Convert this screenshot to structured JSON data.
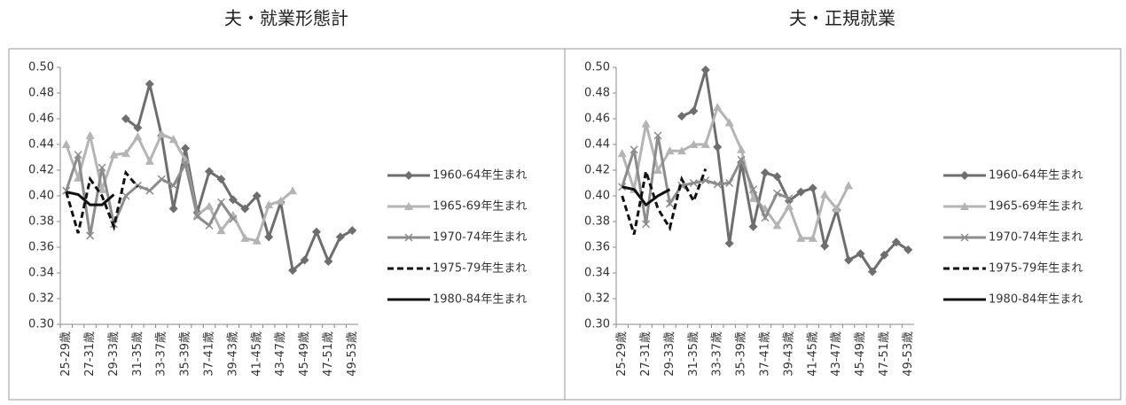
{
  "chart_data": [
    {
      "type": "line",
      "title": "夫・就業形態計",
      "categories": [
        "25-29歳",
        null,
        "27-31歳",
        null,
        "29-33歳",
        null,
        "31-35歳",
        null,
        "33-37歳",
        null,
        "35-39歳",
        null,
        "37-41歳",
        null,
        "39-43歳",
        null,
        "41-45歳",
        null,
        "43-47歳",
        null,
        "45-49歳",
        null,
        "47-51歳",
        null,
        "49-53歳"
      ],
      "ylim": [
        0.3,
        0.5
      ],
      "yticks": [
        {
          "value": 0.3,
          "label": "0.30"
        },
        {
          "value": 0.32,
          "label": "0.32"
        },
        {
          "value": 0.34,
          "label": "0.34"
        },
        {
          "value": 0.36,
          "label": "0.36"
        },
        {
          "value": 0.38,
          "label": "0.38"
        },
        {
          "value": 0.4,
          "label": "0.40"
        },
        {
          "value": 0.42,
          "label": "0.42"
        },
        {
          "value": 0.44,
          "label": "0.44"
        },
        {
          "value": 0.46,
          "label": "0.46"
        },
        {
          "value": 0.48,
          "label": "0.48"
        },
        {
          "value": 0.5,
          "label": "0.50"
        }
      ],
      "legend": "right",
      "series": [
        {
          "name": "1960-64年生まれ",
          "color": "#6e6e6e",
          "marker": "diamond",
          "dash": false,
          "values": [
            null,
            null,
            null,
            null,
            null,
            0.46,
            0.453,
            0.487,
            0.447,
            0.39,
            0.437,
            0.387,
            0.419,
            0.413,
            0.397,
            0.39,
            0.4,
            0.368,
            0.395,
            0.342,
            0.35,
            0.372,
            0.349,
            0.368,
            0.373
          ]
        },
        {
          "name": "1965-69年生まれ",
          "color": "#b4b4b4",
          "marker": "triangle",
          "dash": false,
          "values": [
            0.44,
            0.414,
            0.447,
            0.405,
            0.432,
            0.433,
            0.446,
            0.427,
            0.448,
            0.444,
            0.428,
            0.385,
            0.392,
            0.373,
            0.385,
            0.367,
            0.365,
            0.393,
            0.396,
            0.404,
            null,
            null,
            null,
            null,
            null
          ]
        },
        {
          "name": "1970-74年生まれ",
          "color": "#8c8c8c",
          "marker": "x",
          "dash": false,
          "values": [
            0.404,
            0.432,
            0.369,
            0.422,
            0.378,
            0.4,
            0.408,
            0.404,
            0.413,
            0.408,
            0.425,
            0.384,
            0.377,
            0.395,
            0.382,
            null,
            null,
            null,
            null,
            null,
            null,
            null,
            null,
            null,
            null
          ]
        },
        {
          "name": "1975-79年生まれ",
          "color": "#111111",
          "marker": "none",
          "dash": true,
          "values": [
            0.403,
            0.371,
            0.413,
            0.4,
            0.376,
            0.418,
            0.407,
            null,
            null,
            null,
            null,
            null,
            null,
            null,
            null,
            null,
            null,
            null,
            null,
            null,
            null,
            null,
            null,
            null,
            null
          ]
        },
        {
          "name": "1980-84年生まれ",
          "color": "#111111",
          "marker": "none",
          "dash": false,
          "values": [
            0.403,
            0.401,
            0.393,
            0.393,
            0.401,
            null,
            null,
            null,
            null,
            null,
            null,
            null,
            null,
            null,
            null,
            null,
            null,
            null,
            null,
            null,
            null,
            null,
            null,
            null,
            null
          ]
        }
      ]
    },
    {
      "type": "line",
      "title": "夫・正規就業",
      "categories": [
        "25-29歳",
        null,
        "27-31歳",
        null,
        "29-33歳",
        null,
        "31-35歳",
        null,
        "33-37歳",
        null,
        "35-39歳",
        null,
        "37-41歳",
        null,
        "39-43歳",
        null,
        "41-45歳",
        null,
        "43-47歳",
        null,
        "45-49歳",
        null,
        "47-51歳",
        null,
        "49-53歳"
      ],
      "ylim": [
        0.3,
        0.5
      ],
      "yticks": [
        {
          "value": 0.3,
          "label": "0.30"
        },
        {
          "value": 0.32,
          "label": "0.32"
        },
        {
          "value": 0.34,
          "label": "0.34"
        },
        {
          "value": 0.36,
          "label": "0.36"
        },
        {
          "value": 0.38,
          "label": "0.38"
        },
        {
          "value": 0.4,
          "label": "0.40"
        },
        {
          "value": 0.42,
          "label": "0.42"
        },
        {
          "value": 0.44,
          "label": "0.44"
        },
        {
          "value": 0.46,
          "label": "0.46"
        },
        {
          "value": 0.48,
          "label": "0.48"
        },
        {
          "value": 0.5,
          "label": "0.50"
        }
      ],
      "legend": "right",
      "series": [
        {
          "name": "1960-64年生まれ",
          "color": "#6e6e6e",
          "marker": "diamond",
          "dash": false,
          "values": [
            null,
            null,
            null,
            null,
            null,
            0.462,
            0.466,
            0.498,
            0.438,
            0.363,
            0.426,
            0.376,
            0.418,
            0.415,
            0.396,
            0.403,
            0.406,
            0.361,
            0.389,
            0.35,
            0.355,
            0.341,
            0.354,
            0.364,
            0.358
          ]
        },
        {
          "name": "1965-69年生まれ",
          "color": "#b4b4b4",
          "marker": "triangle",
          "dash": false,
          "values": [
            0.433,
            0.405,
            0.456,
            0.42,
            0.435,
            0.435,
            0.44,
            0.44,
            0.469,
            0.457,
            0.436,
            0.398,
            0.39,
            0.377,
            0.392,
            0.367,
            0.367,
            0.401,
            0.39,
            0.408,
            null,
            null,
            null,
            null,
            null
          ]
        },
        {
          "name": "1970-74年生まれ",
          "color": "#8c8c8c",
          "marker": "x",
          "dash": false,
          "values": [
            0.407,
            0.436,
            0.378,
            0.447,
            0.394,
            0.408,
            0.41,
            0.412,
            0.409,
            0.41,
            0.428,
            0.405,
            0.383,
            0.402,
            0.398,
            null,
            null,
            null,
            null,
            null,
            null,
            null,
            null,
            null,
            null
          ]
        },
        {
          "name": "1975-79年生まれ",
          "color": "#111111",
          "marker": "none",
          "dash": true,
          "values": [
            0.4,
            0.37,
            0.419,
            0.39,
            0.375,
            0.413,
            0.396,
            0.421,
            null,
            null,
            null,
            null,
            null,
            null,
            null,
            null,
            null,
            null,
            null,
            null,
            null,
            null,
            null,
            null,
            null
          ]
        },
        {
          "name": "1980-84年生まれ",
          "color": "#111111",
          "marker": "none",
          "dash": false,
          "values": [
            0.407,
            0.405,
            0.393,
            0.4,
            0.405,
            null,
            null,
            null,
            null,
            null,
            null,
            null,
            null,
            null,
            null,
            null,
            null,
            null,
            null,
            null,
            null,
            null,
            null,
            null,
            null
          ]
        }
      ]
    }
  ]
}
